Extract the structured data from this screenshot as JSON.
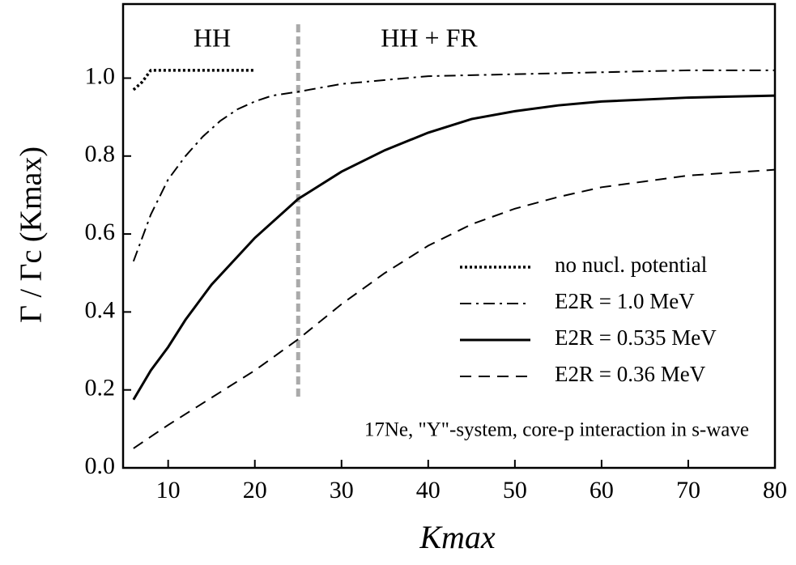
{
  "chart_data": {
    "type": "line",
    "x_label": "Kmax",
    "y_label": "Γ / Γc (Kmax)",
    "xlim": [
      4.8,
      80
    ],
    "ylim": [
      0,
      1.19
    ],
    "xticks": [
      10,
      20,
      30,
      40,
      50,
      60,
      70,
      80
    ],
    "yticks": [
      {
        "value": 0,
        "label": "0.0"
      },
      0.2,
      0.4,
      0.6,
      0.8,
      {
        "value": 1,
        "label": "1.0"
      }
    ],
    "vline": {
      "x": 25,
      "color": "#aaaaaa"
    },
    "regions": [
      "HH",
      "HH + FR"
    ],
    "annotation": "17Ne, \"Y\"-system,  core-p interaction in s-wave",
    "series": [
      {
        "name": "no nucl. potential",
        "color": "#000000",
        "dash": "dotted",
        "x": [
          6,
          7,
          8,
          10,
          15,
          20
        ],
        "values": [
          0.97,
          0.99,
          1.02,
          1.02,
          1.02,
          1.02
        ]
      },
      {
        "name": "E2R = 1.0 MeV",
        "color": "#000000",
        "dash": "dashdot",
        "x": [
          6,
          8,
          10,
          12,
          14,
          16,
          18,
          20,
          22,
          25,
          30,
          35,
          40,
          50,
          60,
          70,
          80
        ],
        "values": [
          0.53,
          0.65,
          0.74,
          0.8,
          0.85,
          0.89,
          0.92,
          0.94,
          0.955,
          0.965,
          0.985,
          0.995,
          1.005,
          1.01,
          1.015,
          1.02,
          1.02
        ]
      },
      {
        "name": "E2R = 0.535 MeV",
        "color": "#000000",
        "dash": "solid",
        "x": [
          6,
          8,
          10,
          12,
          15,
          20,
          25,
          30,
          35,
          40,
          45,
          50,
          55,
          60,
          70,
          80
        ],
        "values": [
          0.175,
          0.25,
          0.31,
          0.38,
          0.47,
          0.59,
          0.69,
          0.76,
          0.815,
          0.86,
          0.895,
          0.915,
          0.93,
          0.94,
          0.95,
          0.955
        ]
      },
      {
        "name": "E2R = 0.36 MeV",
        "color": "#000000",
        "dash": "dashed",
        "x": [
          6,
          8,
          10,
          15,
          20,
          25,
          30,
          35,
          40,
          45,
          50,
          55,
          60,
          65,
          70,
          80
        ],
        "values": [
          0.05,
          0.08,
          0.11,
          0.18,
          0.25,
          0.33,
          0.42,
          0.5,
          0.57,
          0.625,
          0.665,
          0.695,
          0.72,
          0.735,
          0.75,
          0.765
        ]
      }
    ]
  }
}
